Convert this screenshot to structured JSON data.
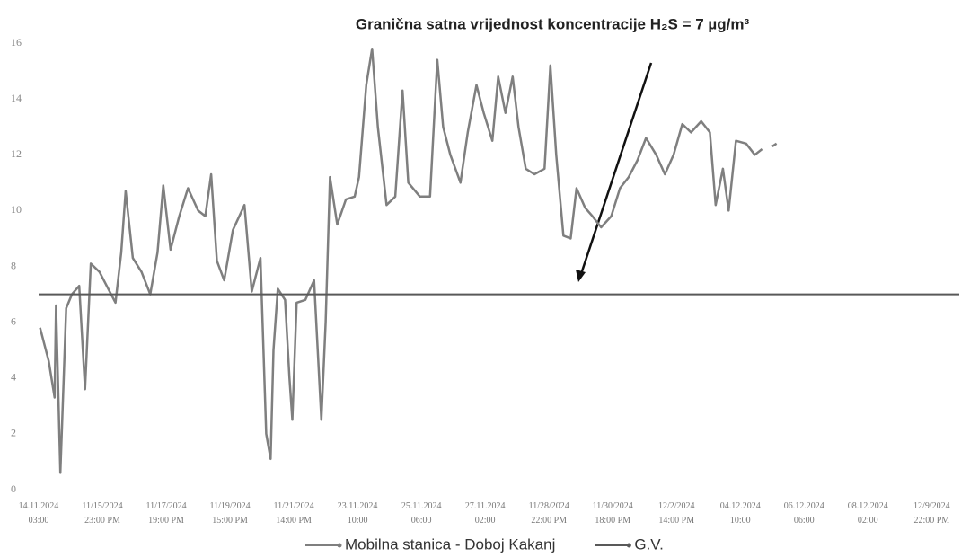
{
  "chart_data": {
    "type": "line",
    "title": "Granična satna vrijednost koncentracije H₂S = 7 µg/m³",
    "ylim": [
      0,
      16
    ],
    "yticks": [
      0,
      2,
      4,
      6,
      8,
      10,
      12,
      14,
      16
    ],
    "xlim": [
      0,
      635
    ],
    "xticks": [
      {
        "value": 0,
        "label": "14.11.2024\n03:00"
      },
      {
        "value": 44,
        "label": "11/15/2024\n23:00 PM"
      },
      {
        "value": 88,
        "label": "11/17/2024\n19:00 PM"
      },
      {
        "value": 132,
        "label": "11/19/2024\n15:00 PM"
      },
      {
        "value": 176,
        "label": "11/21/2024\n14:00 PM"
      },
      {
        "value": 220,
        "label": "23.11.2024\n10:00"
      },
      {
        "value": 264,
        "label": "25.11.2024\n06:00"
      },
      {
        "value": 308,
        "label": "27.11.2024\n02:00"
      },
      {
        "value": 352,
        "label": "11/28/2024\n22:00 PM"
      },
      {
        "value": 396,
        "label": "11/30/2024\n18:00 PM"
      },
      {
        "value": 440,
        "label": "12/2/2024\n14:00 PM"
      },
      {
        "value": 484,
        "label": "04.12.2024\n10:00"
      },
      {
        "value": 528,
        "label": "06.12.2024\n06:00"
      },
      {
        "value": 572,
        "label": "08.12.2024\n02:00"
      },
      {
        "value": 616,
        "label": "12/9/2024\n22:00 PM"
      }
    ],
    "legend": "bottom",
    "series": [
      {
        "name": "Mobilna stanica - Doboj Kakanj",
        "color": "#7f7f7f",
        "x": [
          1,
          7,
          11,
          12,
          15,
          19,
          23,
          28,
          32,
          36,
          42,
          48,
          53,
          57,
          60,
          65,
          71,
          77,
          82,
          86,
          91,
          97,
          103,
          110,
          115,
          119,
          123,
          128,
          134,
          142,
          147,
          153,
          157,
          160,
          162,
          165,
          170,
          173,
          175,
          178,
          184,
          190,
          195,
          198,
          201,
          206,
          212,
          218,
          221,
          226,
          230,
          234,
          240,
          246,
          251,
          255,
          263,
          270,
          275,
          279,
          284,
          291,
          296,
          302,
          307,
          313,
          317,
          322,
          327,
          331,
          336,
          342,
          349,
          353,
          357,
          362,
          367,
          371,
          377,
          382,
          388,
          395,
          401,
          407,
          413,
          419,
          426,
          432,
          438,
          444,
          450,
          457,
          463,
          467,
          472,
          476,
          481,
          488,
          494,
          499,
          502,
          506,
          509
        ],
        "values": [
          5.8,
          4.6,
          3.3,
          6.6,
          0.6,
          6.5,
          7.0,
          7.3,
          3.6,
          8.1,
          7.8,
          7.2,
          6.7,
          8.5,
          10.7,
          8.3,
          7.8,
          7.0,
          8.5,
          10.9,
          8.6,
          9.8,
          10.8,
          10.0,
          9.8,
          11.3,
          8.2,
          7.5,
          9.3,
          10.2,
          7.1,
          8.3,
          2.0,
          1.1,
          5.0,
          7.2,
          6.8,
          4.0,
          2.5,
          6.7,
          6.8,
          7.5,
          2.5,
          6.0,
          11.2,
          9.5,
          10.4,
          10.5,
          11.2,
          14.5,
          15.8,
          13.0,
          10.2,
          10.5,
          14.3,
          11.0,
          10.5,
          10.5,
          15.4,
          13.0,
          12.0,
          11.0,
          12.8,
          14.5,
          13.5,
          12.5,
          14.8,
          13.5,
          14.8,
          13.0,
          11.5,
          11.3,
          11.5,
          15.2,
          12.0,
          9.1,
          9.0,
          10.8,
          10.1,
          9.8,
          9.4,
          9.8,
          10.8,
          11.2,
          11.8,
          12.6,
          12.0,
          11.3,
          12.0,
          13.1,
          12.8,
          13.2,
          12.8,
          10.2,
          11.5,
          10.0,
          12.5,
          12.4,
          12.0,
          12.2,
          null,
          12.3,
          12.4
        ]
      },
      {
        "name": "G.V.",
        "color": "#595959",
        "x": [
          0,
          635
        ],
        "values": [
          7,
          7
        ]
      }
    ]
  }
}
